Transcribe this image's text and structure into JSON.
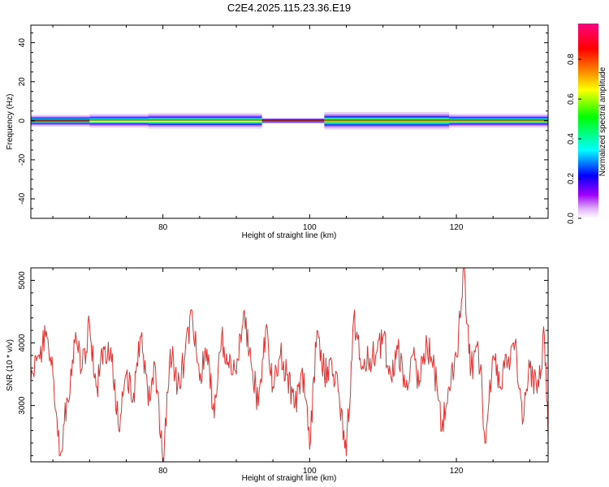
{
  "title": "C2E4.2025.115.23.36.E19",
  "colors": {
    "signal_line": "#e83030",
    "center_line": "#000000",
    "frame": "#000000",
    "spectrogram_background": "#ffffff"
  },
  "chart_data": [
    {
      "type": "heatmap",
      "title": "C2E4.2025.115.23.36.E19",
      "xlabel": "Height of straight line (km)",
      "ylabel": "Frequency (Hz)",
      "xlim": [
        62,
        132.5
      ],
      "ylim": [
        -50,
        49
      ],
      "x_ticks": [
        80,
        100,
        120
      ],
      "y_ticks": [
        -40,
        -20,
        0,
        20,
        40
      ],
      "colorbar": {
        "label": "Normalized spectral amplitude",
        "range": [
          0,
          0.98
        ],
        "ticks": [
          "0.0",
          "0.2",
          "0.4",
          "0.6",
          "0.8"
        ],
        "colormap": "rainbow (white to violet, blue, cyan, green, yellow, orange, red, magenta)"
      },
      "band_center_hz": 0,
      "segments": [
        {
          "x": [
            62,
            70
          ],
          "half_width_hz": 3.0,
          "core_level": 0.9
        },
        {
          "x": [
            70,
            78
          ],
          "half_width_hz": 3.5,
          "core_level": 0.6
        },
        {
          "x": [
            78,
            93.5
          ],
          "half_width_hz": 4.0,
          "core_level": 0.5
        },
        {
          "x": [
            93.5,
            102
          ],
          "half_width_hz": 1.5,
          "core_level": 0.95
        },
        {
          "x": [
            102,
            119
          ],
          "half_width_hz": 4.5,
          "core_level": 0.65
        },
        {
          "x": [
            119,
            132.5
          ],
          "half_width_hz": 3.5,
          "core_level": 0.8
        }
      ],
      "grid": false
    },
    {
      "type": "line",
      "xlabel": "Height of straight line (km)",
      "ylabel": "SNR (10 * v/v)",
      "xlim": [
        62,
        132.5
      ],
      "ylim": [
        2100,
        5200
      ],
      "x_ticks": [
        80,
        100,
        120
      ],
      "y_ticks": [
        3000,
        4000,
        5000
      ],
      "grid": false,
      "series": [
        {
          "color": "#e83030",
          "x": [
            62,
            63,
            64,
            65,
            66,
            67,
            68,
            69,
            70,
            71,
            72,
            73,
            74,
            75,
            76,
            77,
            78,
            79,
            80,
            81,
            82,
            83,
            84,
            85,
            86,
            87,
            88,
            89,
            90,
            91,
            92,
            93,
            94,
            95,
            96,
            97,
            98,
            99,
            100,
            101,
            102,
            103,
            104,
            105,
            106,
            107,
            108,
            109,
            110,
            111,
            112,
            113,
            114,
            115,
            116,
            117,
            118,
            119,
            120,
            120.5,
            121,
            121.5,
            122,
            123,
            124,
            125,
            126,
            127,
            128,
            129,
            130,
            131,
            132,
            132.5
          ],
          "values": [
            3400,
            3800,
            4100,
            3500,
            2200,
            3100,
            4000,
            3600,
            4300,
            3300,
            3900,
            3700,
            2600,
            3500,
            3200,
            4100,
            3000,
            3600,
            2100,
            3900,
            3300,
            3800,
            4500,
            3400,
            3900,
            2800,
            4100,
            3600,
            3500,
            4500,
            3700,
            3000,
            4200,
            3300,
            3800,
            3500,
            3000,
            3600,
            2300,
            4200,
            3500,
            3700,
            3200,
            2200,
            4400,
            3600,
            3700,
            3800,
            4100,
            3500,
            3900,
            3300,
            3800,
            3400,
            4000,
            3600,
            2600,
            3300,
            3800,
            4400,
            5200,
            4300,
            3600,
            3900,
            2400,
            3800,
            3300,
            3700,
            4000,
            2700,
            3600,
            3200,
            4100,
            2500
          ]
        }
      ]
    }
  ]
}
